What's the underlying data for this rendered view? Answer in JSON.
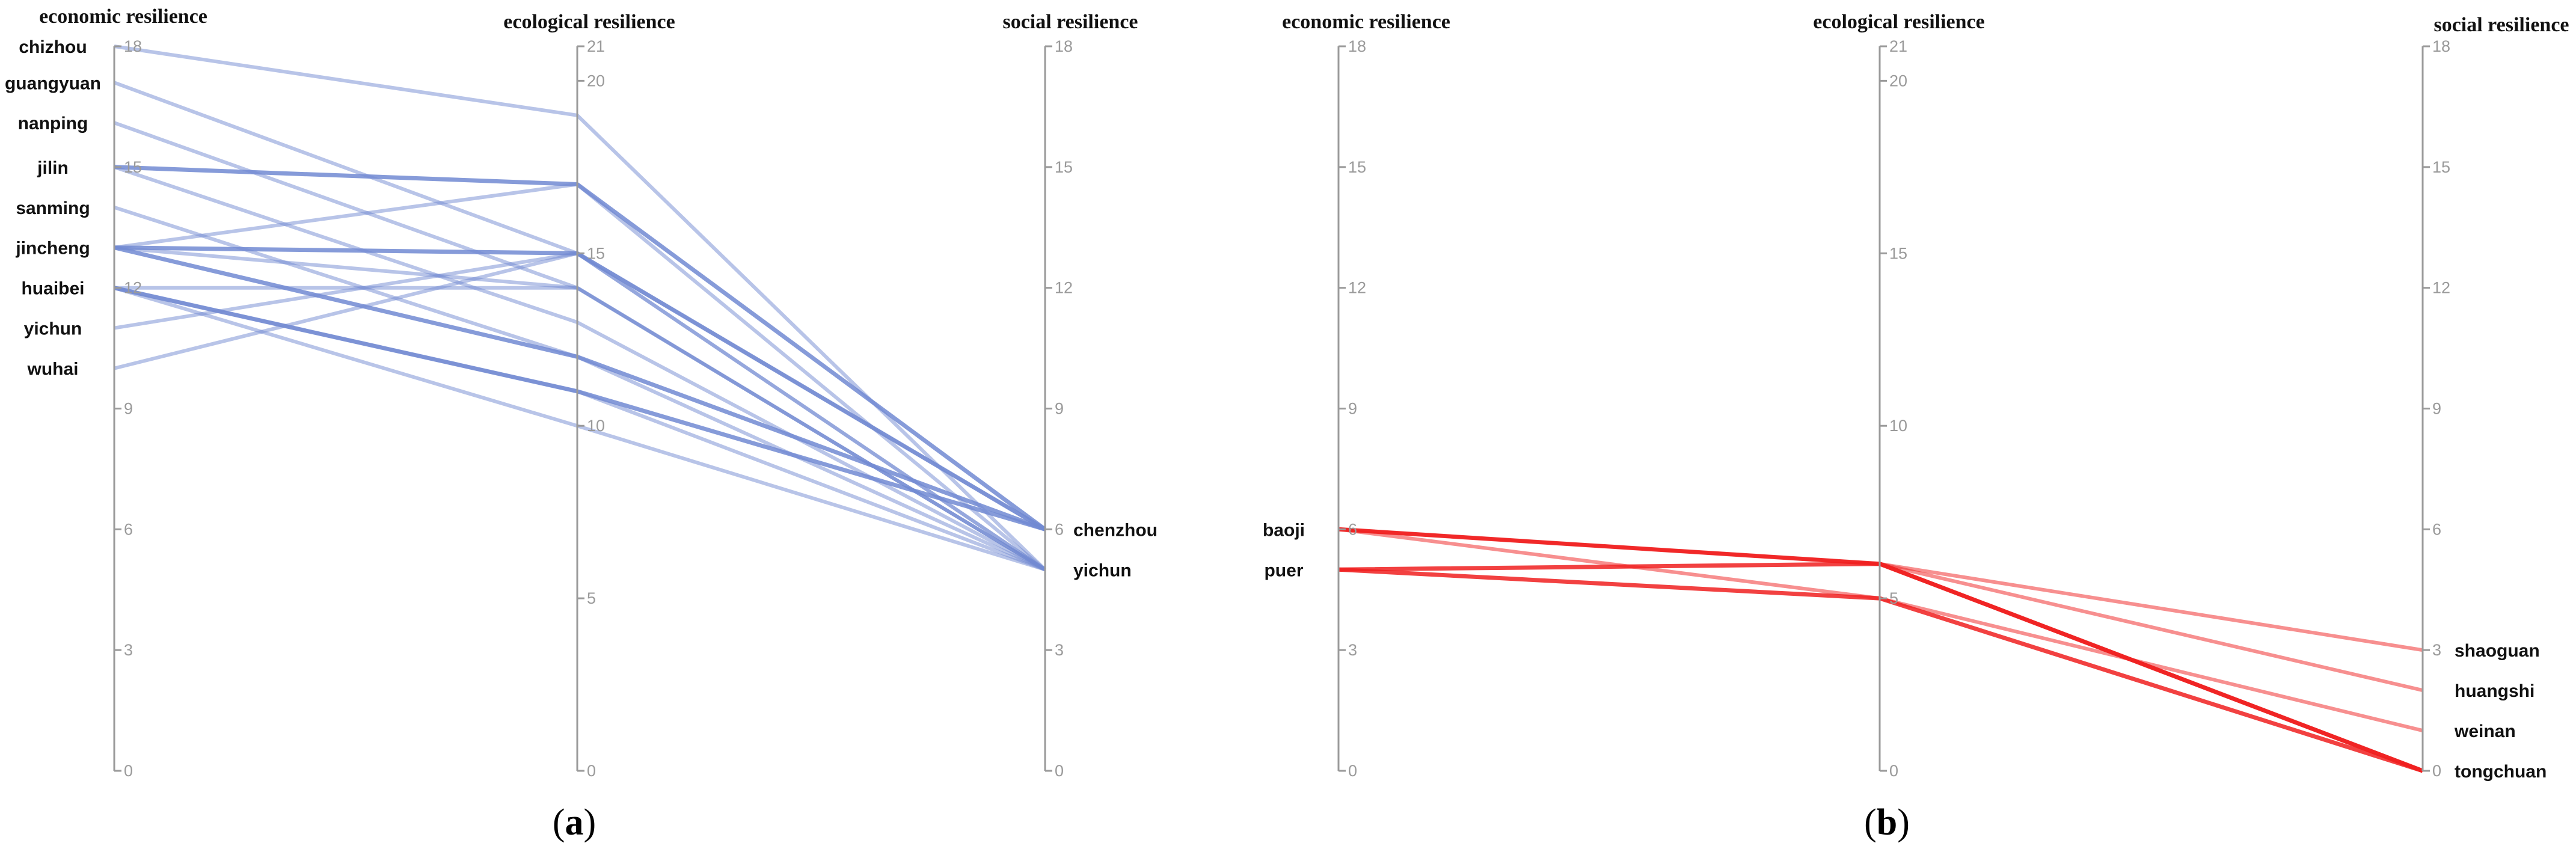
{
  "chart_data": [
    {
      "type": "parallel-coordinates",
      "panel_label": {
        "open": "(",
        "letter": "a",
        "close": ")"
      },
      "axes": [
        {
          "label": "economic resilience",
          "range": [
            0,
            18
          ],
          "ticks": [
            0,
            3,
            6,
            9,
            12,
            15,
            18
          ]
        },
        {
          "label": "ecological resilience",
          "range": [
            0,
            21
          ],
          "ticks": [
            0,
            5,
            10,
            15,
            20,
            21
          ]
        },
        {
          "label": "social resilience",
          "range": [
            0,
            18
          ],
          "ticks": [
            0,
            3,
            6,
            9,
            12,
            15,
            18
          ]
        }
      ],
      "left_labels": [
        {
          "text": "chizhou",
          "value": 18.0
        },
        {
          "text": "guangyuan",
          "value": 17.1
        },
        {
          "text": "nanping",
          "value": 16.1
        },
        {
          "text": "jilin",
          "value": 15.0
        },
        {
          "text": "sanming",
          "value": 14.0
        },
        {
          "text": "jincheng",
          "value": 13.0
        },
        {
          "text": "huaibei",
          "value": 12.0
        },
        {
          "text": "yichun",
          "value": 11.0
        },
        {
          "text": "wuhai",
          "value": 10.0
        }
      ],
      "right_labels": [
        {
          "text": "chenzhou",
          "value": 6.0
        },
        {
          "text": "yichun",
          "value": 5.0
        }
      ],
      "line_color": "#7189d2",
      "lines": [
        {
          "values": [
            18.0,
            19.0,
            5.0
          ],
          "weight": 1
        },
        {
          "values": [
            17.1,
            15.0,
            5.0
          ],
          "weight": 1
        },
        {
          "values": [
            16.1,
            14.0,
            5.0
          ],
          "weight": 1
        },
        {
          "values": [
            15.0,
            17.0,
            6.0
          ],
          "weight": 2
        },
        {
          "values": [
            15.0,
            13.0,
            5.0
          ],
          "weight": 1
        },
        {
          "values": [
            14.0,
            12.0,
            5.0
          ],
          "weight": 1
        },
        {
          "values": [
            13.0,
            15.0,
            6.0
          ],
          "weight": 2
        },
        {
          "values": [
            13.0,
            14.0,
            5.0
          ],
          "weight": 1
        },
        {
          "values": [
            13.0,
            17.0,
            5.0
          ],
          "weight": 1
        },
        {
          "values": [
            13.0,
            12.0,
            6.0
          ],
          "weight": 2
        },
        {
          "values": [
            12.0,
            14.0,
            5.0
          ],
          "weight": 1
        },
        {
          "values": [
            12.0,
            11.0,
            6.0
          ],
          "weight": 2
        },
        {
          "values": [
            12.0,
            11.0,
            5.0
          ],
          "weight": 1
        },
        {
          "values": [
            11.0,
            15.0,
            6.0
          ],
          "weight": 1
        },
        {
          "values": [
            10.0,
            15.0,
            5.0
          ],
          "weight": 1
        },
        {
          "values": [
            12.0,
            10.0,
            5.0
          ],
          "weight": 1
        }
      ]
    },
    {
      "type": "parallel-coordinates",
      "panel_label": {
        "open": "(",
        "letter": "b",
        "close": ")"
      },
      "axes": [
        {
          "label": "economic resilience",
          "range": [
            0,
            18
          ],
          "ticks": [
            0,
            3,
            6,
            9,
            12,
            15,
            18
          ]
        },
        {
          "label": "ecological resilience",
          "range": [
            0,
            21
          ],
          "ticks": [
            0,
            5,
            10,
            15,
            20,
            21
          ]
        },
        {
          "label": "social resilience",
          "range": [
            0,
            18
          ],
          "ticks": [
            0,
            3,
            6,
            9,
            12,
            15,
            18
          ]
        }
      ],
      "left_labels": [
        {
          "text": "baoji",
          "value": 6.0
        },
        {
          "text": "puer",
          "value": 5.0
        }
      ],
      "right_labels": [
        {
          "text": "shaoguan",
          "value": 3.0
        },
        {
          "text": "huangshi",
          "value": 2.0
        },
        {
          "text": "weinan",
          "value": 1.0
        },
        {
          "text": "tongchuan",
          "value": 0.0
        }
      ],
      "line_color": "#f02020",
      "lines": [
        {
          "values": [
            6.0,
            6.0,
            3.0
          ],
          "weight": 1
        },
        {
          "values": [
            6.0,
            6.0,
            2.0
          ],
          "weight": 1
        },
        {
          "values": [
            6.0,
            5.0,
            1.0
          ],
          "weight": 1
        },
        {
          "values": [
            6.0,
            6.0,
            0.0
          ],
          "weight": 2
        },
        {
          "values": [
            5.0,
            6.0,
            0.0
          ],
          "weight": 2
        },
        {
          "values": [
            5.0,
            5.0,
            0.0
          ],
          "weight": 2
        }
      ]
    }
  ]
}
